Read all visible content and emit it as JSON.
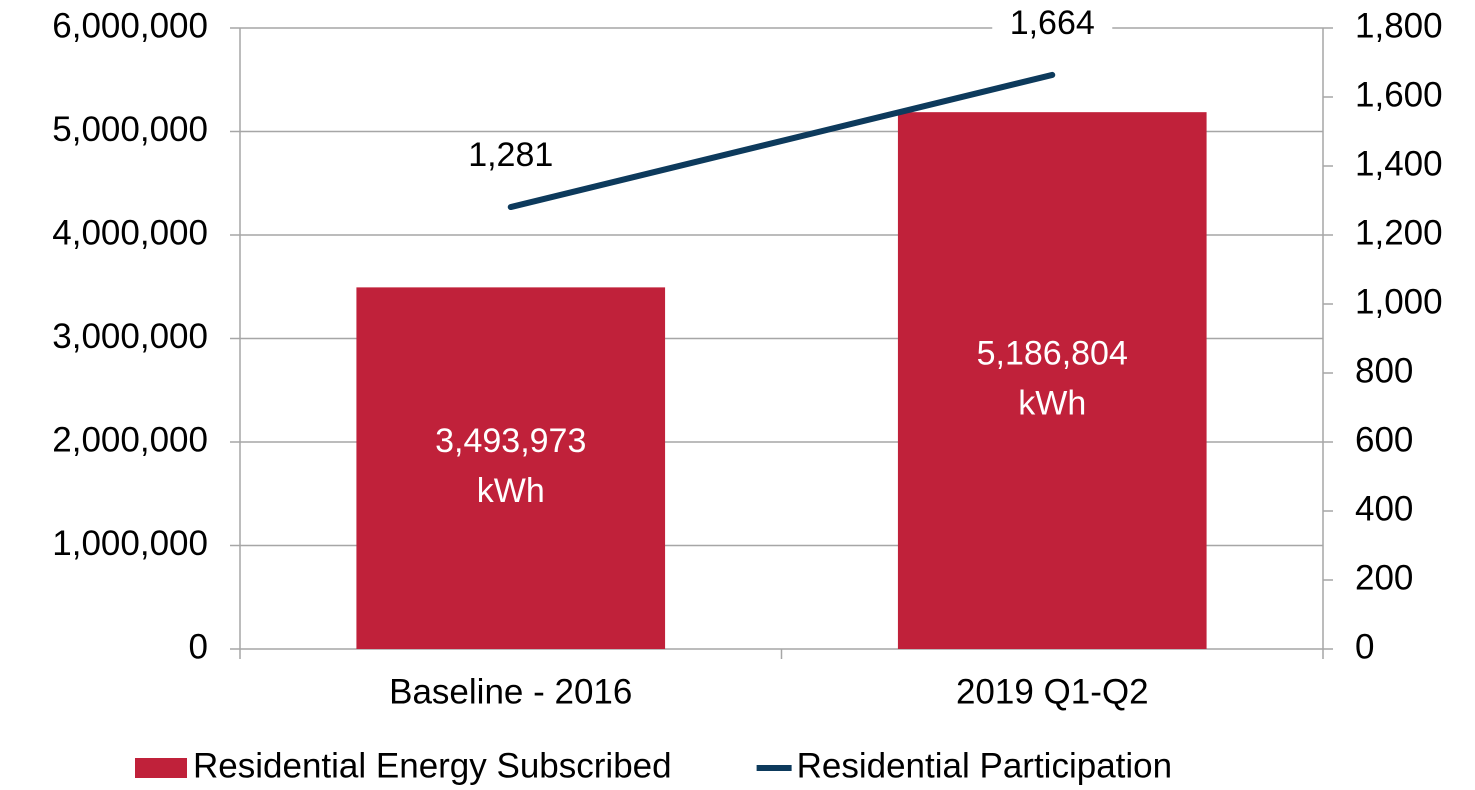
{
  "chart_data": {
    "type": "bar",
    "categories": [
      "Baseline - 2016",
      "2019 Q1-Q2"
    ],
    "series": [
      {
        "name": "Residential Energy Subscribed",
        "type": "bar",
        "color": "#c0213a",
        "values": [
          3493973,
          5186804
        ],
        "value_labels": [
          "3,493,973 kWh",
          "5,186,804 kWh"
        ]
      },
      {
        "name": "Residential Participation",
        "type": "line",
        "axis": "y2",
        "color": "#0d3a5c",
        "values": [
          1281,
          1664
        ],
        "value_labels": [
          "1,281",
          "1,664"
        ]
      }
    ],
    "ylim": [
      0,
      6000000
    ],
    "yticks": [
      0,
      {
        "value": 1000000,
        "label": "1,000,000"
      },
      {
        "value": 2000000,
        "label": "2,000,000"
      },
      {
        "value": 3000000,
        "label": "3,000,000"
      },
      {
        "value": 4000000,
        "label": "4,000,000"
      },
      {
        "value": 5000000,
        "label": "5,000,000"
      },
      {
        "value": 6000000,
        "label": "6,000,000"
      }
    ],
    "y2lim": [
      0,
      1800
    ],
    "y2ticks": [
      0,
      200,
      400,
      600,
      800,
      {
        "value": 1000,
        "label": "1,000"
      },
      {
        "value": 1200,
        "label": "1,200"
      },
      {
        "value": 1400,
        "label": "1,400"
      },
      {
        "value": 1600,
        "label": "1,600"
      },
      {
        "value": 1800,
        "label": "1,800"
      }
    ],
    "grid": true,
    "legend": "bottom"
  }
}
